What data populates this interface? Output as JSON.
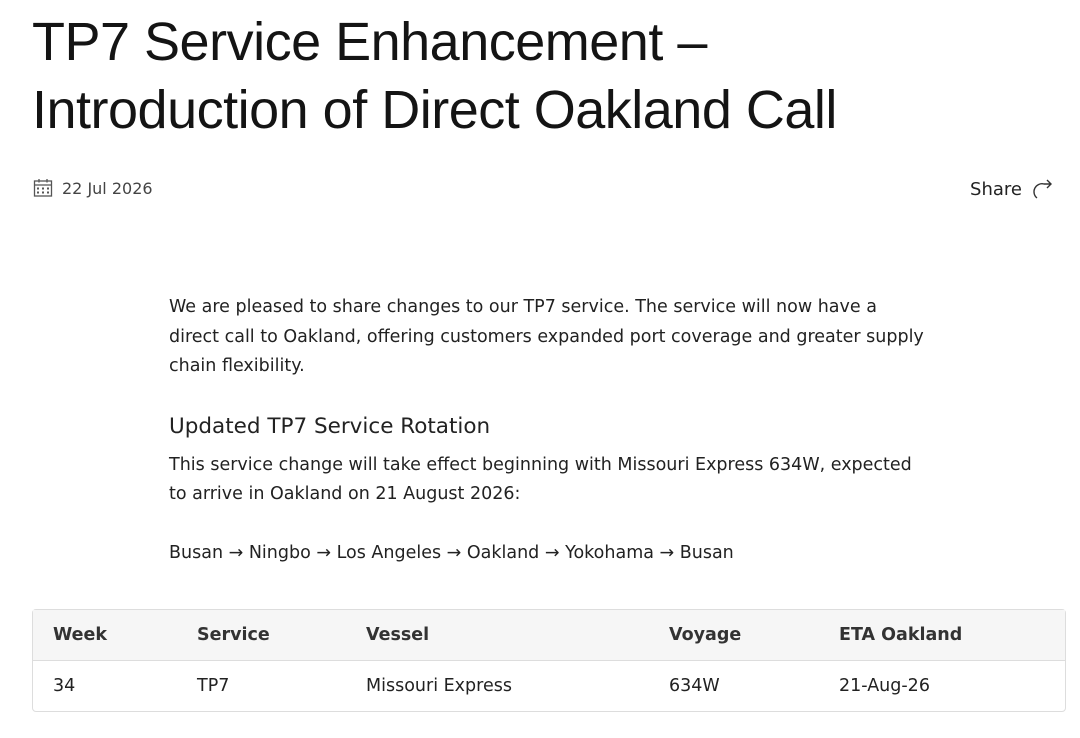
{
  "header": {
    "title_lines": [
      "TP7 Service Enhancement –",
      "Introduction of Direct Oakland Call"
    ],
    "date": "22 Jul 2026",
    "share": "Share"
  },
  "body": {
    "intro": "We are pleased to share changes to our TP7 service. The service will now have a direct call to Oakland, offering customers expanded port coverage and greater supply chain flexibility.",
    "heading": "Updated TP7 Service Rotation",
    "text": "This service change will take effect beginning with Missouri Express 634W, expected to arrive in Oakland on 21 August 2026:",
    "rotation": "Busan → Ningbo → Los Angeles → Oakland → Yokohama → Busan"
  },
  "table": {
    "columns": [
      "Week",
      "Service",
      "Vessel",
      "Voyage",
      "ETA Oakland"
    ],
    "rows": [
      [
        "34",
        "TP7",
        "Missouri Express",
        "634W",
        "21-Aug-26"
      ]
    ]
  }
}
